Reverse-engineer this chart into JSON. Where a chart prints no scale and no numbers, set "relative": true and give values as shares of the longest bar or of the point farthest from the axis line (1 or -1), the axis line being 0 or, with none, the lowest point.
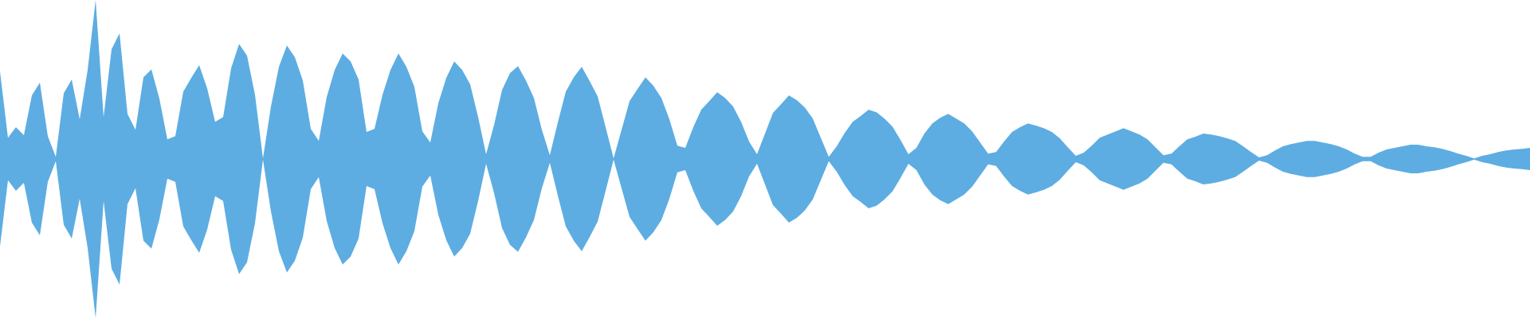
{
  "chart_data": {
    "type": "area",
    "relative": true,
    "categories": [
      null,
      null,
      null,
      null,
      null,
      null,
      null,
      null,
      null,
      null,
      null,
      null,
      null,
      null,
      null,
      null,
      null,
      null,
      null,
      null,
      null,
      null,
      null,
      null,
      null,
      null,
      null,
      null,
      null,
      null,
      null,
      null,
      null,
      null,
      null,
      null,
      null,
      null,
      null,
      null,
      null,
      null,
      null,
      null,
      null,
      null,
      null,
      null,
      null,
      null,
      null,
      null,
      null,
      null,
      null,
      null,
      null,
      null,
      null,
      null,
      null,
      null,
      null,
      null,
      null,
      null,
      null,
      null,
      null,
      null,
      null,
      null,
      null,
      null,
      null,
      null,
      null,
      null,
      null,
      null,
      null,
      null,
      null,
      null,
      null,
      null,
      null,
      null,
      null,
      null,
      null,
      null,
      null,
      null,
      null,
      null,
      null,
      null,
      null,
      null,
      null,
      null,
      null,
      null,
      null,
      null,
      null,
      null,
      null,
      null,
      null,
      null,
      null,
      null,
      null,
      null,
      null,
      null,
      null,
      null,
      null,
      null,
      null,
      null,
      null,
      null,
      null,
      null,
      null,
      null,
      null,
      null,
      null,
      null,
      null,
      null,
      null,
      null,
      null,
      null,
      null,
      null,
      null,
      null,
      null,
      null,
      null,
      null,
      null,
      null,
      null,
      null,
      null,
      null,
      null,
      null,
      null,
      null,
      null,
      null,
      null,
      null,
      null,
      null,
      null,
      null,
      null,
      null,
      null,
      null,
      null,
      null,
      null,
      null,
      null,
      null,
      null,
      null,
      null,
      null,
      null,
      null,
      null,
      null,
      null,
      null,
      null,
      null,
      null,
      null,
      null,
      null,
      null
    ],
    "series": [
      {
        "color": "#5dade2",
        "values": [
          0.775,
          0.567,
          0.6,
          0.575,
          0.7,
          0.74,
          0.572,
          0.507,
          0.707,
          0.75,
          0.625,
          0.78,
          1,
          0.632,
          0.845,
          0.895,
          0.642,
          0.592,
          0.757,
          0.782,
          0.69,
          0.562,
          0.572,
          0.712,
          0.755,
          0.795,
          0.722,
          0.617,
          0.632,
          0.785,
          0.862,
          0.825,
          0.702,
          0.502,
          0.665,
          0.79,
          0.857,
          0.82,
          0.747,
          0.595,
          0.557,
          0.695,
          0.78,
          0.832,
          0.807,
          0.75,
          0.585,
          0.595,
          0.702,
          0.78,
          0.832,
          0.79,
          0.727,
          0.587,
          0.552,
          0.675,
          0.755,
          0.807,
          0.78,
          0.735,
          0.632,
          0.515,
          0.607,
          0.717,
          0.77,
          0.792,
          0.747,
          0.692,
          0.592,
          0.512,
          0.615,
          0.712,
          0.757,
          0.79,
          0.745,
          0.697,
          0.6,
          0.502,
          0.592,
          0.682,
          0.72,
          0.757,
          0.73,
          0.692,
          0.625,
          0.542,
          0.535,
          0.6,
          0.655,
          0.682,
          0.71,
          0.692,
          0.665,
          0.617,
          0.555,
          0.515,
          0.58,
          0.645,
          0.672,
          0.7,
          0.685,
          0.662,
          0.627,
          0.567,
          0.507,
          0.54,
          0.582,
          0.617,
          0.635,
          0.655,
          0.647,
          0.627,
          0.602,
          0.56,
          0.515,
          0.535,
          0.58,
          0.612,
          0.63,
          0.642,
          0.627,
          0.612,
          0.587,
          0.552,
          0.517,
          0.522,
          0.555,
          0.585,
          0.6,
          0.612,
          0.605,
          0.597,
          0.585,
          0.565,
          0.537,
          0.51,
          0.52,
          0.542,
          0.567,
          0.577,
          0.587,
          0.597,
          0.587,
          0.577,
          0.562,
          0.537,
          0.512,
          0.517,
          0.54,
          0.562,
          0.57,
          0.58,
          0.577,
          0.572,
          0.565,
          0.557,
          0.54,
          0.522,
          0.505,
          0.512,
          0.527,
          0.54,
          0.547,
          0.552,
          0.557,
          0.557,
          0.552,
          0.547,
          0.54,
          0.53,
          0.517,
          0.507,
          0.507,
          0.52,
          0.53,
          0.535,
          0.54,
          0.545,
          0.545,
          0.54,
          0.537,
          0.532,
          0.525,
          0.517,
          0.51,
          0.502,
          0.51,
          0.515,
          0.522,
          0.527,
          0.53,
          0.532,
          0.535
        ]
      }
    ]
  }
}
